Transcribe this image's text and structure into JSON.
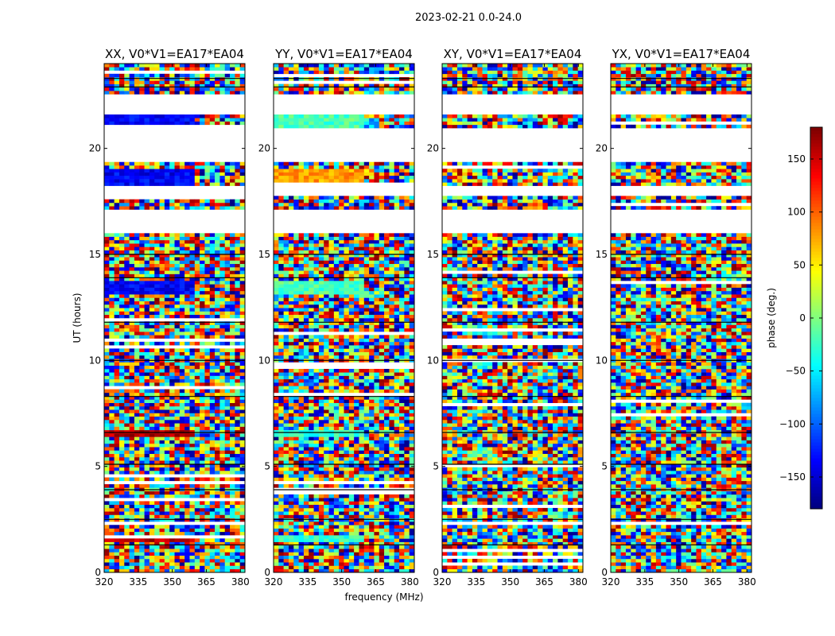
{
  "chart_data": {
    "type": "heatmap",
    "suptitle": "2023-02-21 0.0-24.0",
    "xlabel": "frequency (MHz)",
    "ylabel": "UT (hours)",
    "colorbar_label": "phase (deg.)",
    "colormap": "jet",
    "xlim": [
      320,
      382
    ],
    "ylim": [
      0,
      24
    ],
    "clim": [
      -180,
      180
    ],
    "xticks": [
      320,
      335,
      350,
      365,
      380
    ],
    "yticks": [
      0,
      5,
      10,
      15,
      20
    ],
    "cticks": [
      -150,
      -100,
      -50,
      0,
      50,
      100,
      150
    ],
    "panels": [
      {
        "title": "XX, V0*V1=EA17*EA04"
      },
      {
        "title": "YY, V0*V1=EA17*EA04"
      },
      {
        "title": "XY, V0*V1=EA17*EA04"
      },
      {
        "title": "YX, V0*V1=EA17*EA04"
      }
    ],
    "gaps_hours": [
      [
        16.0,
        17.2
      ],
      [
        17.8,
        18.2
      ],
      [
        19.3,
        21.0
      ],
      [
        21.6,
        22.5
      ]
    ],
    "flagged_lines_hours": [
      1.3,
      2.5,
      3.9,
      5.1,
      6.6,
      8.3,
      10.0,
      11.8,
      13.9,
      15.0,
      22.9,
      23.3
    ]
  }
}
